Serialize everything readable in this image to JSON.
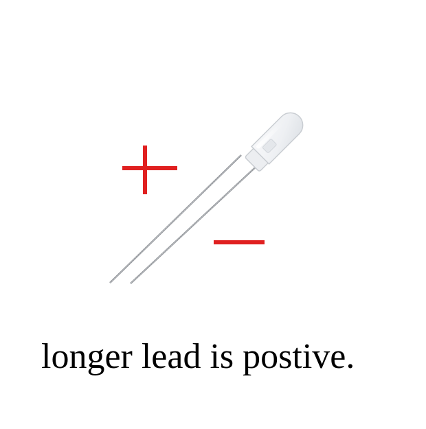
{
  "caption": "longer lead is postive.",
  "colors": {
    "background": "#ffffff",
    "polarity_marks": "#e02020",
    "caption_text": "#000000",
    "led_lens": "#f1f3f6",
    "lead_wire": "#8a8d92"
  },
  "icons": {
    "plus": "plus-sign-icon",
    "minus": "minus-sign-icon",
    "component": "led-icon"
  }
}
